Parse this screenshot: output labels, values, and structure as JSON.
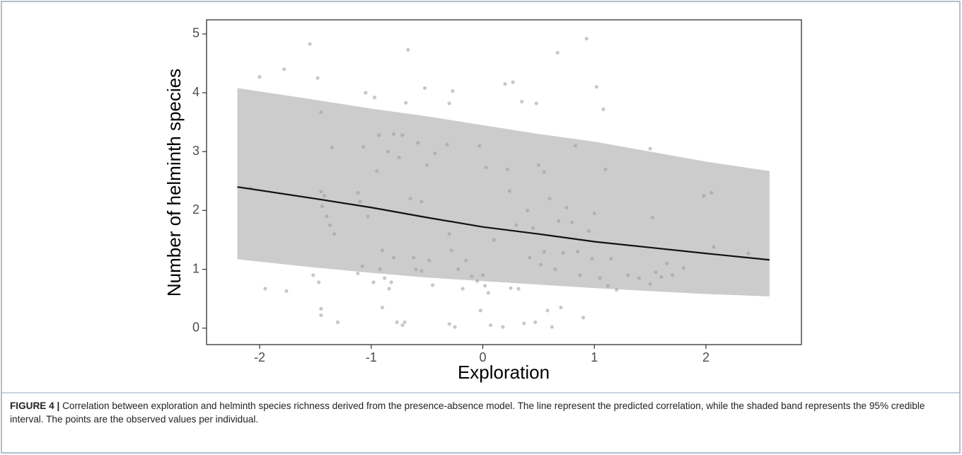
{
  "chart_data": {
    "type": "scatter",
    "xlabel": "Exploration",
    "ylabel": "Number of helminth species",
    "xlim": [
      -2.476,
      2.856
    ],
    "ylim": [
      -0.28,
      5.24
    ],
    "xticks": [
      -2,
      -1,
      0,
      1,
      2
    ],
    "yticks": [
      0,
      1,
      2,
      3,
      4,
      5
    ],
    "point_color": "#9a9a9a",
    "band_color": "#cccccc",
    "line_color": "#111111",
    "x": [
      -2.0,
      -1.95,
      -1.78,
      -1.76,
      -2.08,
      -1.55,
      -1.52,
      -1.48,
      -1.47,
      -1.45,
      -1.45,
      -1.44,
      -1.42,
      -1.4,
      -1.37,
      -1.35,
      -1.33,
      -1.45,
      -1.45,
      -1.3,
      -1.12,
      -1.12,
      -1.1,
      -1.08,
      -1.07,
      -1.05,
      -1.03,
      -0.98,
      -0.97,
      -0.95,
      -0.93,
      -0.92,
      -0.9,
      -0.9,
      -0.88,
      -0.85,
      -0.84,
      -0.82,
      -0.8,
      -0.8,
      -0.77,
      -0.75,
      -0.72,
      -0.72,
      -0.7,
      -0.69,
      -0.67,
      -0.65,
      -0.62,
      -0.6,
      -0.58,
      -0.55,
      -0.55,
      -0.52,
      -0.5,
      -0.48,
      -0.45,
      -0.43,
      -0.32,
      -0.3,
      -0.3,
      -0.3,
      -0.28,
      -0.27,
      -0.25,
      -0.22,
      -0.18,
      -0.15,
      -0.1,
      -0.05,
      -0.03,
      -0.02,
      0.0,
      0.02,
      0.03,
      0.05,
      0.07,
      0.1,
      0.18,
      0.2,
      0.22,
      0.24,
      0.25,
      0.27,
      0.3,
      0.32,
      0.35,
      0.37,
      0.4,
      0.42,
      0.45,
      0.47,
      0.48,
      0.5,
      0.52,
      0.55,
      0.55,
      0.58,
      0.6,
      0.62,
      0.65,
      0.67,
      0.68,
      0.7,
      0.72,
      0.75,
      0.8,
      0.83,
      0.85,
      0.87,
      0.9,
      0.93,
      0.95,
      0.98,
      1.0,
      1.02,
      1.05,
      1.08,
      1.1,
      1.12,
      1.15,
      1.2,
      1.3,
      1.4,
      1.5,
      1.5,
      1.52,
      1.55,
      1.6,
      1.65,
      1.8,
      1.98,
      2.05,
      2.07,
      2.38,
      1.7
    ],
    "values": [
      4.27,
      0.67,
      4.4,
      0.63,
      2.38,
      4.83,
      0.9,
      4.25,
      0.78,
      3.67,
      2.32,
      2.07,
      2.25,
      1.9,
      1.75,
      3.07,
      1.6,
      0.33,
      0.22,
      0.1,
      0.93,
      2.3,
      2.15,
      1.05,
      3.08,
      4.0,
      1.9,
      0.78,
      3.92,
      2.67,
      3.28,
      1.0,
      1.32,
      0.35,
      0.85,
      3.0,
      0.67,
      0.78,
      1.2,
      3.3,
      0.1,
      2.9,
      3.28,
      0.05,
      0.1,
      3.83,
      4.73,
      2.2,
      1.2,
      1.0,
      3.15,
      2.15,
      0.97,
      4.08,
      2.77,
      1.15,
      0.73,
      2.97,
      3.12,
      3.82,
      1.6,
      0.07,
      1.32,
      4.03,
      0.02,
      1.0,
      0.67,
      1.15,
      0.88,
      0.8,
      3.1,
      0.3,
      0.9,
      0.72,
      2.73,
      0.6,
      0.05,
      1.5,
      0.02,
      4.15,
      2.7,
      2.33,
      0.68,
      4.18,
      1.75,
      0.67,
      3.85,
      0.08,
      2.0,
      1.2,
      1.7,
      0.1,
      3.82,
      2.77,
      1.08,
      2.65,
      1.3,
      0.3,
      2.2,
      0.02,
      1.0,
      4.68,
      1.82,
      0.35,
      1.28,
      2.05,
      1.8,
      3.1,
      1.3,
      0.9,
      0.18,
      4.92,
      1.65,
      1.18,
      1.95,
      4.1,
      0.85,
      3.72,
      2.7,
      0.72,
      1.18,
      0.65,
      0.9,
      0.85,
      3.05,
      0.75,
      1.88,
      0.95,
      0.87,
      1.1,
      1.02,
      2.25,
      2.3,
      1.38,
      1.27,
      0.9
    ],
    "fit": {
      "x": [
        -2.2,
        -1.5,
        -1,
        -0.5,
        0,
        0.5,
        1,
        1.5,
        2,
        2.57
      ],
      "values": [
        2.4,
        2.2,
        2.05,
        1.88,
        1.72,
        1.6,
        1.47,
        1.37,
        1.27,
        1.16
      ],
      "lower": [
        1.17,
        1.03,
        0.94,
        0.86,
        0.8,
        0.74,
        0.68,
        0.63,
        0.58,
        0.54
      ],
      "upper": [
        4.08,
        3.88,
        3.73,
        3.6,
        3.45,
        3.3,
        3.17,
        3.0,
        2.83,
        2.67
      ]
    }
  },
  "caption": {
    "label": "FIGURE 4 |",
    "text": "Correlation between exploration and helminth species richness derived from the presence-absence model. The line represent the predicted correlation, while the shaded band represents the 95% credible interval. The points are the observed values per individual."
  }
}
